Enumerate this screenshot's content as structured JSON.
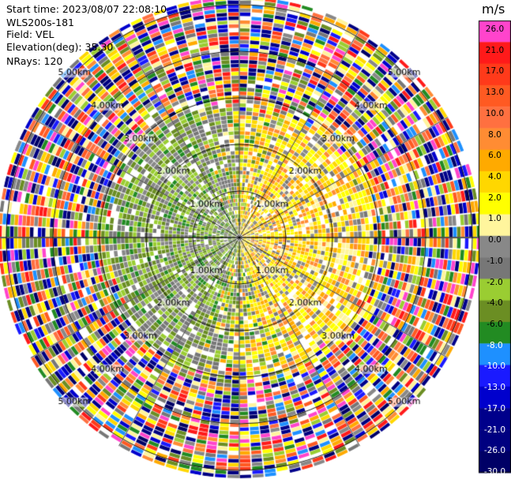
{
  "header": {
    "start_time": "Start time: 2023/08/07 22:08:10",
    "station": "WLS200s-181",
    "field": "Field: VEL",
    "elevation": "Elevation(deg): 35.30",
    "nrays": "NRays: 120"
  },
  "chart_data": {
    "type": "heatmap",
    "projection": "polar PPI",
    "nrays": 120,
    "range_rings_km": [
      1,
      2,
      3,
      4,
      5
    ],
    "ring_labels": [
      "1.00km",
      "2.00km",
      "3.00km",
      "4.00km",
      "5.00km"
    ],
    "max_range_km": 5.2,
    "spokes_deg": [
      0,
      30,
      60,
      90,
      120,
      150,
      180,
      210,
      240,
      270,
      300,
      330
    ],
    "colorbar": {
      "unit": "m/s",
      "ticks": [
        "26.0",
        "21.0",
        "17.0",
        "13.0",
        "10.0",
        "8.0",
        "6.0",
        "4.0",
        "2.0",
        "1.0",
        "0.0",
        "-1.0",
        "-2.0",
        "-4.0",
        "-6.0",
        "-8.0",
        "-10.0",
        "-13.0",
        "-17.0",
        "-21.0",
        "-26.0",
        "-30.0"
      ],
      "colors": [
        "#ff44cc",
        "#ff1a1a",
        "#ff3a1a",
        "#ff5a22",
        "#ff7040",
        "#ff8c33",
        "#ffaa00",
        "#ffd700",
        "#ffff00",
        "#fff59d",
        "#888888",
        "#777777",
        "#9acd32",
        "#6b8e23",
        "#228b22",
        "#1e90ff",
        "#1a1aff",
        "#0000cd",
        "#00008b",
        "#000080",
        "#000066"
      ]
    },
    "wind_pattern": {
      "inbound_sector": "west",
      "outbound_sector": "east",
      "noise_beyond_km": 3.0
    }
  }
}
